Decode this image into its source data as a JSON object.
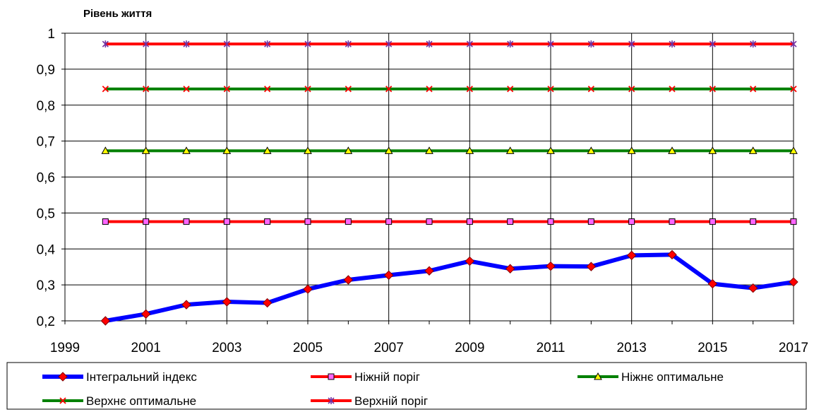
{
  "chart_data": {
    "type": "line",
    "title": "Рівень життя",
    "x": [
      2000,
      2001,
      2002,
      2003,
      2004,
      2005,
      2006,
      2007,
      2008,
      2009,
      2010,
      2011,
      2012,
      2013,
      2014,
      2015,
      2016,
      2017
    ],
    "xlim": [
      1999,
      2017
    ],
    "ylim": [
      0.2,
      1
    ],
    "x_ticks": [
      "1999",
      "2001",
      "2003",
      "2005",
      "2007",
      "2009",
      "2011",
      "2013",
      "2015",
      "2017"
    ],
    "y_ticks": [
      "0,2",
      "0,3",
      "0,4",
      "0,5",
      "0,6",
      "0,7",
      "0,8",
      "0,9",
      "1"
    ],
    "grid": true,
    "legend_position": "bottom",
    "series": [
      {
        "name": "Інтегральний індекс",
        "color": "#0000ff",
        "marker": "diamond",
        "marker_color": "#ff0000",
        "values": [
          0.2,
          0.219,
          0.245,
          0.253,
          0.25,
          0.288,
          0.314,
          0.327,
          0.339,
          0.366,
          0.345,
          0.352,
          0.351,
          0.382,
          0.384,
          0.303,
          0.291,
          0.308
        ]
      },
      {
        "name": "Ніжній поріг",
        "color": "#ff0000",
        "marker": "square",
        "marker_color": "#ff66ff",
        "values": [
          0.476,
          0.476,
          0.476,
          0.476,
          0.476,
          0.476,
          0.476,
          0.476,
          0.476,
          0.476,
          0.476,
          0.476,
          0.476,
          0.476,
          0.476,
          0.476,
          0.476,
          0.476
        ]
      },
      {
        "name": "Ніжнє оптимальне",
        "color": "#008000",
        "marker": "triangle",
        "marker_color": "#ffff00",
        "values": [
          0.673,
          0.673,
          0.673,
          0.673,
          0.673,
          0.673,
          0.673,
          0.673,
          0.673,
          0.673,
          0.673,
          0.673,
          0.673,
          0.673,
          0.673,
          0.673,
          0.673,
          0.673
        ]
      },
      {
        "name": "Верхнє оптимальне",
        "color": "#008000",
        "marker": "x",
        "marker_color": "#ff0000",
        "values": [
          0.845,
          0.845,
          0.845,
          0.845,
          0.845,
          0.845,
          0.845,
          0.845,
          0.845,
          0.845,
          0.845,
          0.845,
          0.845,
          0.845,
          0.845,
          0.845,
          0.845,
          0.845
        ]
      },
      {
        "name": "Верхній поріг",
        "color": "#ff0000",
        "marker": "star",
        "marker_color": "#7030a0",
        "values": [
          0.97,
          0.97,
          0.97,
          0.97,
          0.97,
          0.97,
          0.97,
          0.97,
          0.97,
          0.97,
          0.97,
          0.97,
          0.97,
          0.97,
          0.97,
          0.97,
          0.97,
          0.97
        ]
      }
    ]
  }
}
